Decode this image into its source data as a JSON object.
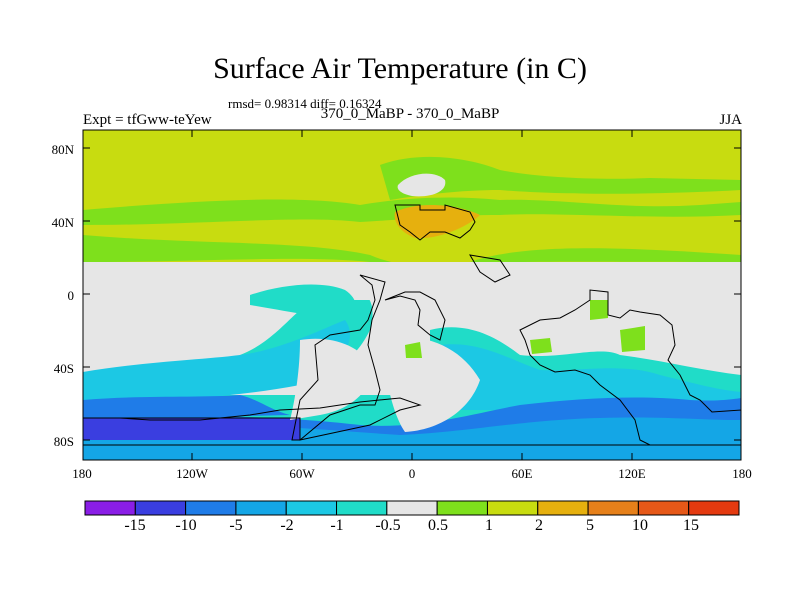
{
  "header": {
    "title": "Surface Air Temperature (in C)",
    "stats": "rmsd= 0.98314 diff= 0.16324",
    "experiment": "Expt = tfGww-teYew",
    "comparison": "370_0_MaBP - 370_0_MaBP",
    "season": "JJA"
  },
  "axes": {
    "y_ticks": [
      "80N",
      "40N",
      "0",
      "40S",
      "80S"
    ],
    "x_ticks": [
      "180",
      "120W",
      "60W",
      "0",
      "60E",
      "120E",
      "180"
    ]
  },
  "colorbar": {
    "labels": [
      "-15",
      "-10",
      "-5",
      "-2",
      "-1",
      "-0.5",
      "0.5",
      "1",
      "2",
      "5",
      "10",
      "15"
    ],
    "colors": [
      "#8a1ee6",
      "#3a3ee0",
      "#1f7ce8",
      "#14a6e6",
      "#1cc8e4",
      "#20dcc8",
      "#e6e6e6",
      "#7ee01c",
      "#c8dc10",
      "#e6b00e",
      "#e6801a",
      "#e65818",
      "#e43a10"
    ]
  },
  "map_colors": {
    "neutral": "#e6e6e6",
    "light_green": "#7ee01c",
    "yellow_green": "#c8dc10",
    "orange": "#e6b00e",
    "teal": "#20dcc8",
    "cyan": "#1cc8e4",
    "light_blue": "#14a6e6",
    "blue": "#1f7ce8",
    "dark_blue": "#3a3ee0"
  }
}
